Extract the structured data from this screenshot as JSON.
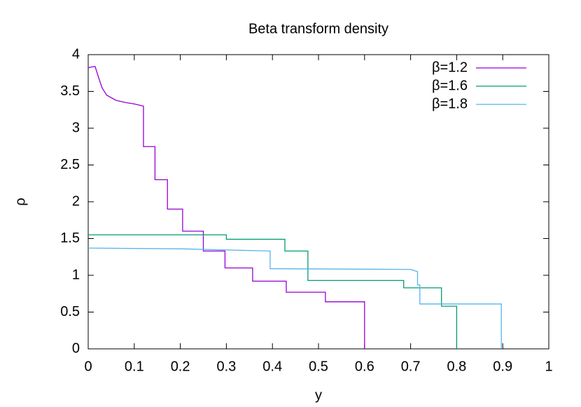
{
  "chart_data": {
    "type": "line",
    "title": "Beta transform density",
    "x_label": "y",
    "y_label": "ρ",
    "xlim": [
      0,
      1
    ],
    "ylim": [
      0,
      4
    ],
    "xticks": [
      0,
      0.1,
      0.2,
      0.3,
      0.4,
      0.5,
      0.6,
      0.7,
      0.8,
      0.9,
      1
    ],
    "yticks": [
      0,
      0.5,
      1,
      1.5,
      2,
      2.5,
      3,
      3.5,
      4
    ],
    "grid": false,
    "legend": "top-right",
    "series": [
      {
        "name": "β=1.2",
        "color": "#9400d3",
        "x": [
          0,
          0.005,
          0.015,
          0.022,
          0.03,
          0.04,
          0.06,
          0.08,
          0.1,
          0.12,
          0.12,
          0.145,
          0.145,
          0.172,
          0.172,
          0.205,
          0.205,
          0.25,
          0.25,
          0.297,
          0.297,
          0.357,
          0.357,
          0.43,
          0.43,
          0.515,
          0.515,
          0.6,
          0.6
        ],
        "values": [
          3.82,
          3.83,
          3.84,
          3.7,
          3.55,
          3.45,
          3.38,
          3.35,
          3.33,
          3.3,
          2.75,
          2.75,
          2.3,
          2.3,
          1.9,
          1.9,
          1.6,
          1.6,
          1.33,
          1.33,
          1.1,
          1.1,
          0.92,
          0.92,
          0.77,
          0.77,
          0.64,
          0.64,
          0
        ]
      },
      {
        "name": "β=1.6",
        "color": "#009e73",
        "x": [
          0,
          0.3,
          0.3,
          0.427,
          0.427,
          0.477,
          0.477,
          0.685,
          0.685,
          0.767,
          0.767,
          0.8,
          0.8
        ],
        "values": [
          1.55,
          1.55,
          1.49,
          1.49,
          1.33,
          1.33,
          0.93,
          0.93,
          0.83,
          0.83,
          0.58,
          0.58,
          0
        ]
      },
      {
        "name": "β=1.8",
        "color": "#56b4e9",
        "x": [
          0,
          0.2,
          0.395,
          0.395,
          0.7,
          0.715,
          0.715,
          0.72,
          0.72,
          0.897,
          0.897
        ],
        "values": [
          1.37,
          1.36,
          1.33,
          1.09,
          1.08,
          1.05,
          0.87,
          0.87,
          0.61,
          0.61,
          0
        ]
      }
    ]
  }
}
